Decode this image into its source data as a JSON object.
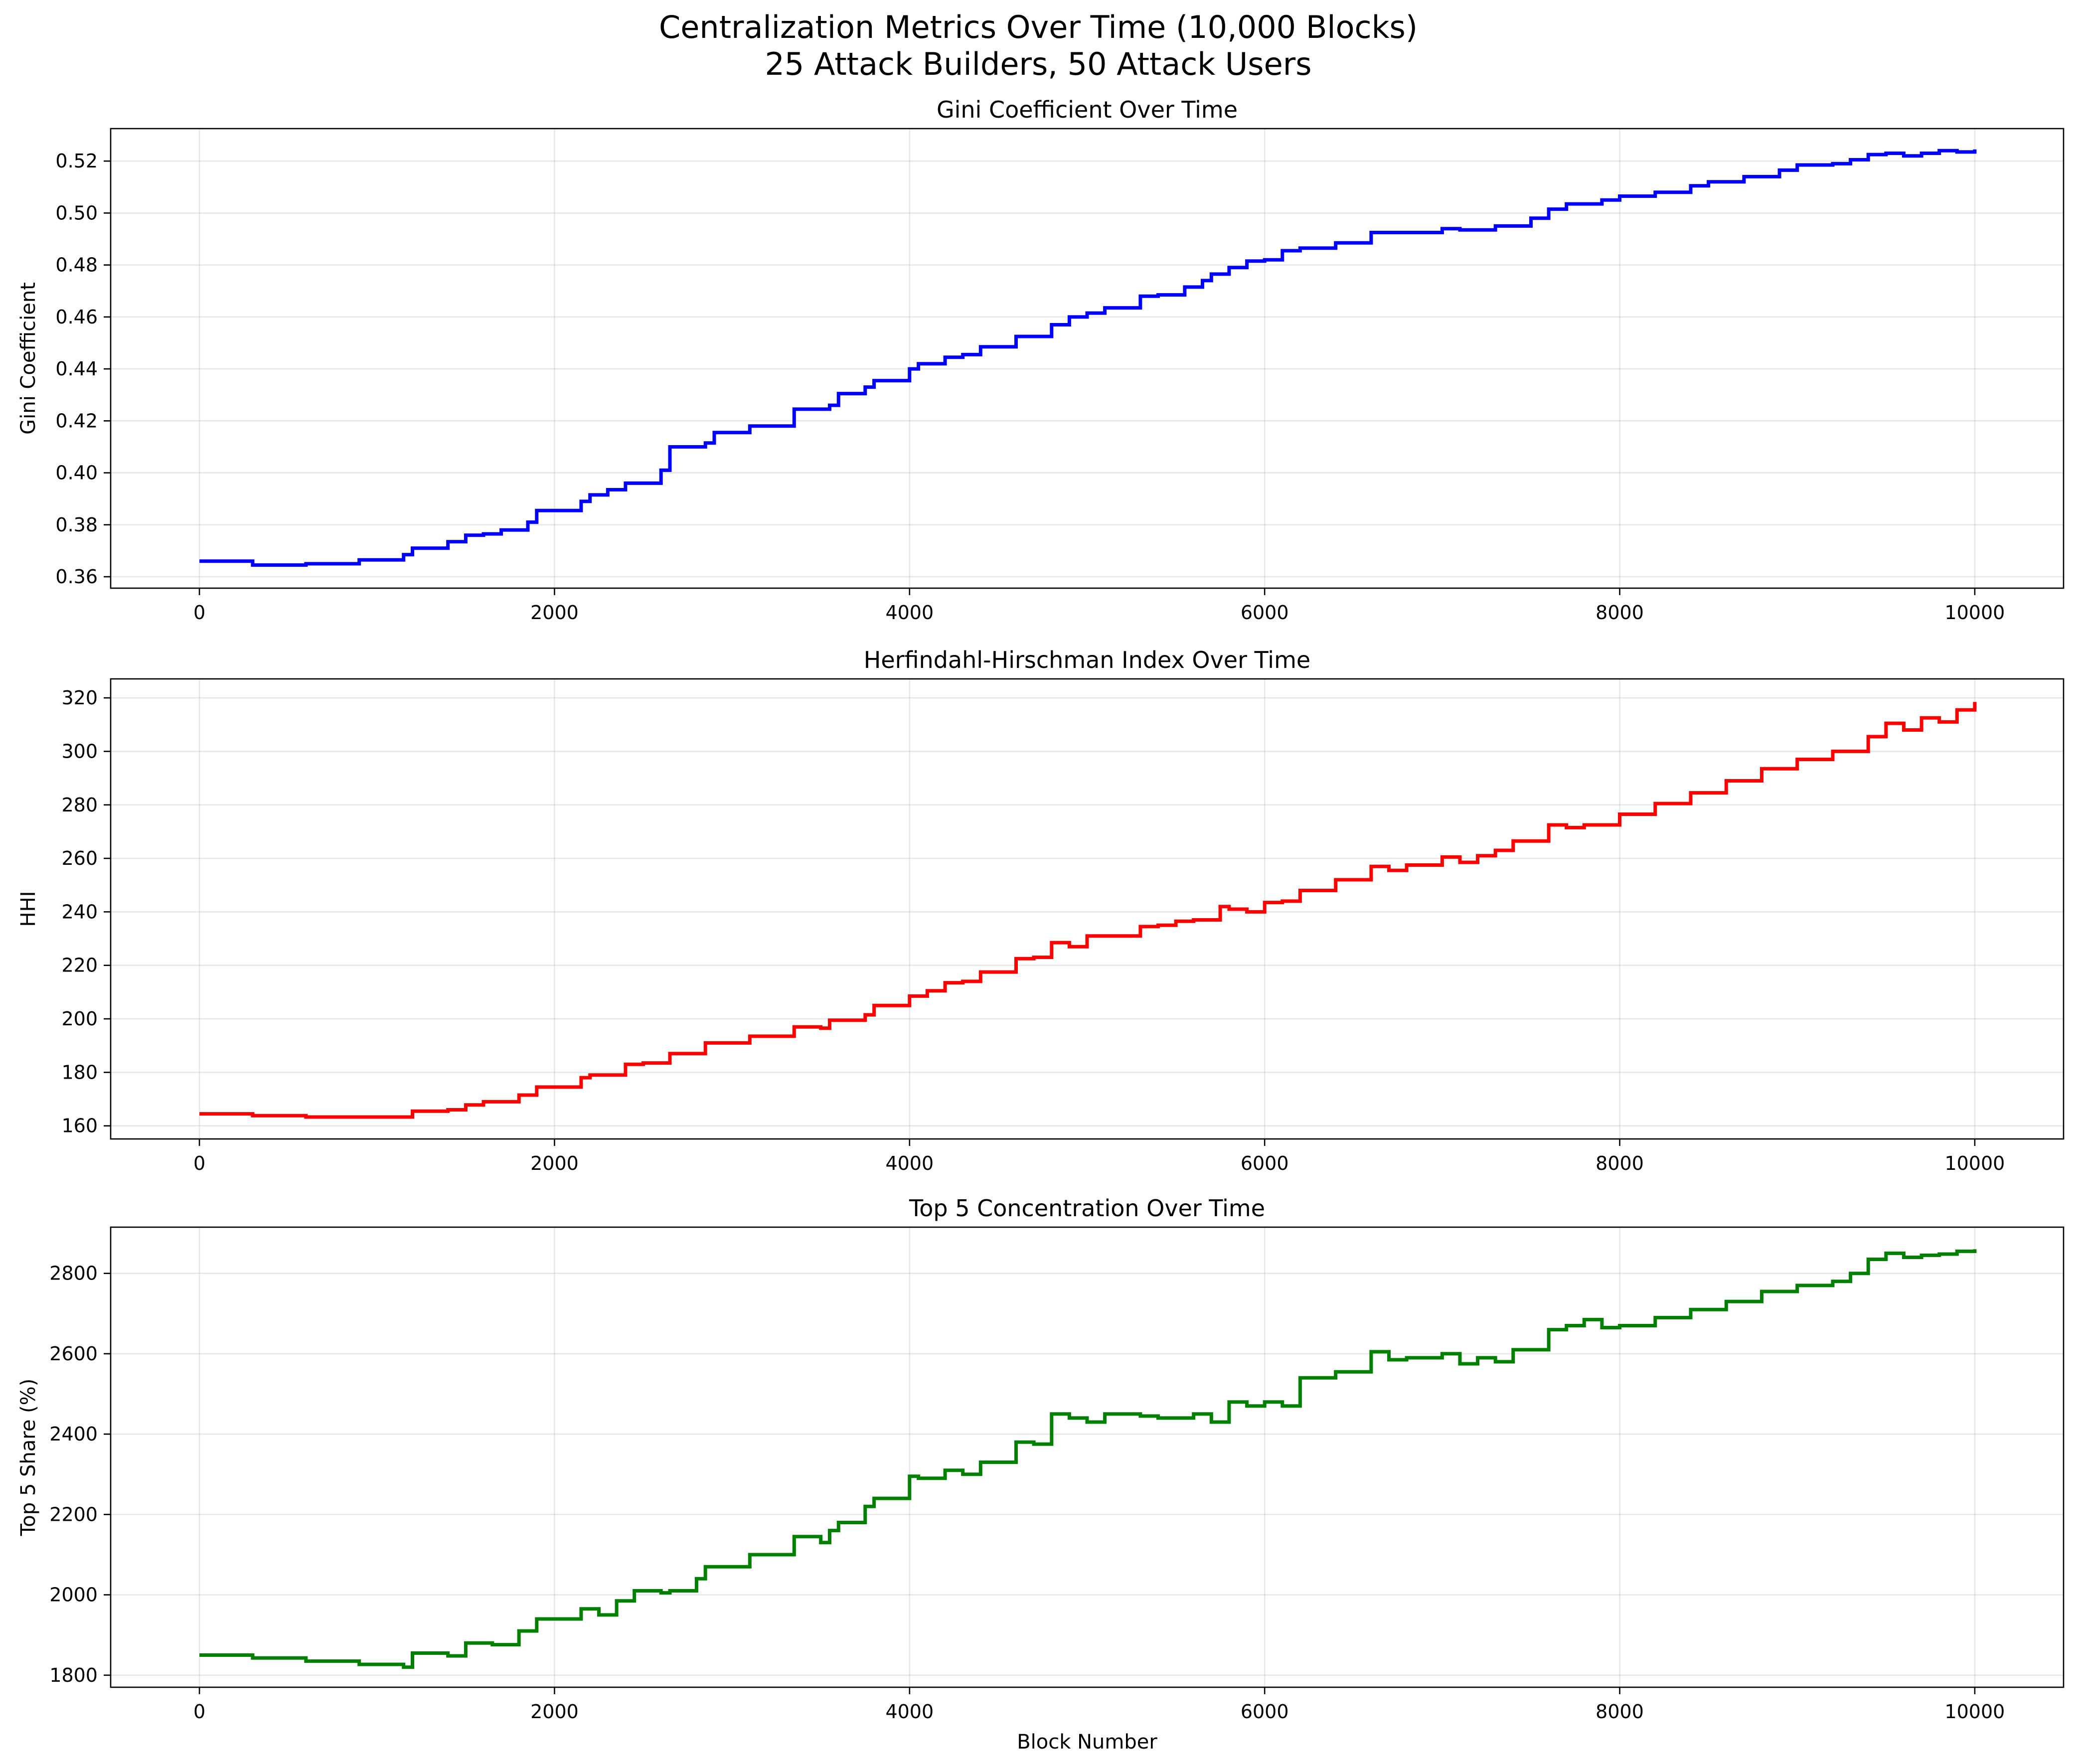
{
  "figure": {
    "title_line1": "Centralization Metrics Over Time (10,000 Blocks)",
    "title_line2": "25 Attack Builders, 50 Attack Users"
  },
  "chart_data": [
    {
      "type": "line",
      "title": "Gini Coefficient Over Time",
      "xlabel": "",
      "ylabel": "Gini Coefficient",
      "xlim": [
        -500,
        10500
      ],
      "ylim": [
        0.3556,
        0.5325
      ],
      "xticks": [
        0,
        2000,
        4000,
        6000,
        8000,
        10000
      ],
      "yticks": [
        0.36,
        0.38,
        0.4,
        0.42,
        0.44,
        0.46,
        0.48,
        0.5,
        0.52
      ],
      "tick_decimals": 2,
      "grid": true,
      "color": "#0000ff",
      "series": [
        {
          "x": [
            0,
            300,
            600,
            900,
            1150,
            1200,
            1400,
            1500,
            1600,
            1700,
            1850,
            1900,
            2150,
            2200,
            2300,
            2400,
            2600,
            2650,
            2850,
            2900,
            3100,
            3350,
            3550,
            3600,
            3750,
            3800,
            4000,
            4050,
            4200,
            4300,
            4400,
            4600,
            4800,
            4900,
            5000,
            5100,
            5300,
            5400,
            5550,
            5650,
            5700,
            5800,
            5900,
            6000,
            6100,
            6200,
            6400,
            6600,
            6800,
            7000,
            7100,
            7300,
            7400,
            7500,
            7600,
            7700,
            7900,
            8000,
            8200,
            8400,
            8500,
            8700,
            8900,
            9000,
            9200,
            9300,
            9400,
            9500,
            9600,
            9700,
            9800,
            9900,
            10000
          ],
          "y": [
            0.366,
            0.3645,
            0.365,
            0.3665,
            0.3685,
            0.371,
            0.3735,
            0.376,
            0.3765,
            0.378,
            0.381,
            0.3855,
            0.389,
            0.3915,
            0.3935,
            0.396,
            0.401,
            0.41,
            0.4115,
            0.4155,
            0.418,
            0.4245,
            0.426,
            0.4305,
            0.433,
            0.4355,
            0.44,
            0.442,
            0.4445,
            0.4455,
            0.4485,
            0.4525,
            0.457,
            0.46,
            0.4615,
            0.4635,
            0.468,
            0.4685,
            0.4715,
            0.474,
            0.4765,
            0.479,
            0.4815,
            0.482,
            0.4855,
            0.4865,
            0.4885,
            0.4925,
            0.4925,
            0.494,
            0.4935,
            0.495,
            0.495,
            0.498,
            0.5015,
            0.5035,
            0.505,
            0.5065,
            0.508,
            0.5105,
            0.512,
            0.514,
            0.5165,
            0.5185,
            0.519,
            0.5205,
            0.5225,
            0.523,
            0.522,
            0.523,
            0.524,
            0.5235,
            0.5245
          ]
        }
      ]
    },
    {
      "type": "line",
      "title": "Herfindahl-Hirschman Index Over Time",
      "xlabel": "",
      "ylabel": "HHI",
      "xlim": [
        -500,
        10500
      ],
      "ylim": [
        155.1,
        327.1
      ],
      "xticks": [
        0,
        2000,
        4000,
        6000,
        8000,
        10000
      ],
      "yticks": [
        160,
        180,
        200,
        220,
        240,
        260,
        280,
        300,
        320
      ],
      "tick_decimals": 0,
      "grid": true,
      "color": "#ff0000",
      "series": [
        {
          "x": [
            0,
            300,
            600,
            900,
            1150,
            1200,
            1400,
            1500,
            1600,
            1800,
            1900,
            2150,
            2200,
            2400,
            2500,
            2650,
            2800,
            2850,
            3100,
            3350,
            3500,
            3550,
            3750,
            3800,
            4000,
            4100,
            4200,
            4300,
            4400,
            4600,
            4700,
            4800,
            4900,
            5000,
            5100,
            5300,
            5400,
            5500,
            5600,
            5750,
            5800,
            5900,
            6000,
            6100,
            6200,
            6400,
            6600,
            6700,
            6800,
            7000,
            7100,
            7200,
            7300,
            7400,
            7600,
            7700,
            7800,
            7900,
            8000,
            8200,
            8400,
            8600,
            8800,
            9000,
            9200,
            9400,
            9500,
            9600,
            9700,
            9800,
            9900,
            10000
          ],
          "y": [
            164.5,
            163.8,
            163.3,
            163.3,
            163.3,
            165.5,
            166.0,
            167.8,
            169.0,
            171.5,
            174.5,
            178.0,
            179.0,
            183.0,
            183.5,
            187.0,
            187.0,
            191.0,
            193.5,
            197.0,
            196.5,
            199.5,
            201.5,
            205.0,
            208.5,
            210.5,
            213.5,
            214.0,
            217.5,
            222.5,
            223.0,
            228.5,
            227.0,
            231.0,
            231.0,
            234.5,
            235.0,
            236.5,
            237.0,
            242.0,
            241.0,
            240.0,
            243.5,
            244.0,
            248.0,
            252.0,
            257.0,
            255.5,
            257.5,
            260.5,
            258.5,
            261.0,
            263.0,
            266.5,
            272.5,
            271.5,
            272.5,
            272.5,
            276.5,
            280.5,
            284.5,
            289.0,
            293.5,
            297.0,
            300.0,
            305.5,
            310.5,
            308.0,
            312.5,
            311.0,
            315.5,
            318.5
          ]
        }
      ]
    },
    {
      "type": "line",
      "title": "Top 5 Concentration Over Time",
      "xlabel": "Block Number",
      "ylabel": "Top 5 Share (%)",
      "xlim": [
        -500,
        10500
      ],
      "ylim": [
        1770,
        2915
      ],
      "xticks": [
        0,
        2000,
        4000,
        6000,
        8000,
        10000
      ],
      "yticks": [
        1800,
        2000,
        2200,
        2400,
        2600,
        2800
      ],
      "tick_decimals": 0,
      "grid": true,
      "color": "#008000",
      "series": [
        {
          "x": [
            0,
            300,
            600,
            900,
            1150,
            1200,
            1400,
            1500,
            1650,
            1800,
            1900,
            2050,
            2150,
            2250,
            2350,
            2450,
            2600,
            2650,
            2800,
            2850,
            3100,
            3350,
            3500,
            3550,
            3600,
            3750,
            3800,
            4000,
            4050,
            4200,
            4300,
            4400,
            4600,
            4700,
            4800,
            4900,
            5000,
            5100,
            5300,
            5400,
            5600,
            5700,
            5800,
            5900,
            6000,
            6100,
            6200,
            6400,
            6600,
            6700,
            6800,
            7000,
            7100,
            7200,
            7300,
            7400,
            7600,
            7700,
            7800,
            7900,
            8000,
            8200,
            8400,
            8600,
            8800,
            9000,
            9200,
            9300,
            9400,
            9500,
            9600,
            9700,
            9800,
            9900,
            10000
          ],
          "y": [
            1850,
            1843,
            1835,
            1827,
            1820,
            1855,
            1848,
            1880,
            1876,
            1910,
            1940,
            1940,
            1965,
            1950,
            1985,
            2010,
            2005,
            2010,
            2040,
            2070,
            2100,
            2145,
            2130,
            2160,
            2180,
            2220,
            2240,
            2295,
            2290,
            2310,
            2300,
            2330,
            2380,
            2375,
            2450,
            2440,
            2430,
            2450,
            2445,
            2440,
            2450,
            2430,
            2480,
            2470,
            2480,
            2470,
            2540,
            2555,
            2605,
            2585,
            2590,
            2600,
            2575,
            2590,
            2580,
            2610,
            2660,
            2670,
            2685,
            2665,
            2670,
            2690,
            2710,
            2730,
            2755,
            2770,
            2780,
            2800,
            2835,
            2850,
            2840,
            2845,
            2848,
            2855,
            2860
          ]
        }
      ]
    }
  ]
}
